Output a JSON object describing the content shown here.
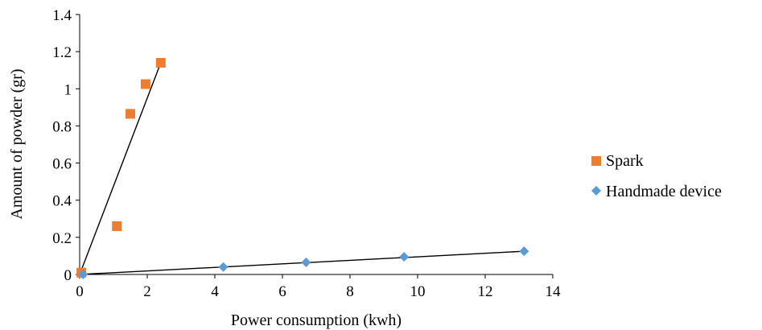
{
  "chart_data": {
    "type": "scatter",
    "title": "",
    "xlabel": "Power consumption (kwh)",
    "ylabel": "Amount of powder (gr)",
    "xlim": [
      0,
      14
    ],
    "ylim": [
      0,
      1.4
    ],
    "x_ticks": [
      0,
      2,
      4,
      6,
      8,
      10,
      12,
      14
    ],
    "y_ticks": [
      0,
      0.2,
      0.4,
      0.6,
      0.8,
      1,
      1.2,
      1.4
    ],
    "x_tick_labels": [
      "0",
      "2",
      "4",
      "6",
      "8",
      "10",
      "12",
      "14"
    ],
    "y_tick_labels": [
      "0",
      "0.2",
      "0.4",
      "0.6",
      "0.8",
      "1",
      "1.2",
      "1.4"
    ],
    "grid": false,
    "legend_position": "right",
    "series": [
      {
        "name": "Spark",
        "marker": "square",
        "color": "#ED7D31",
        "points": [
          {
            "x": 0.05,
            "y": 0.01
          },
          {
            "x": 1.1,
            "y": 0.26
          },
          {
            "x": 1.5,
            "y": 0.865
          },
          {
            "x": 1.95,
            "y": 1.025
          },
          {
            "x": 2.4,
            "y": 1.14
          }
        ],
        "trendline": {
          "from": [
            0,
            0
          ],
          "to": [
            2.4,
            1.14
          ]
        }
      },
      {
        "name": "Handmade device",
        "marker": "diamond",
        "color": "#5B9BD5",
        "points": [
          {
            "x": 0.1,
            "y": 0.0
          },
          {
            "x": 4.25,
            "y": 0.04
          },
          {
            "x": 6.7,
            "y": 0.065
          },
          {
            "x": 9.6,
            "y": 0.095
          },
          {
            "x": 13.15,
            "y": 0.125
          }
        ],
        "trendline": {
          "from": [
            0,
            0
          ],
          "to": [
            13.15,
            0.125
          ]
        }
      }
    ]
  }
}
